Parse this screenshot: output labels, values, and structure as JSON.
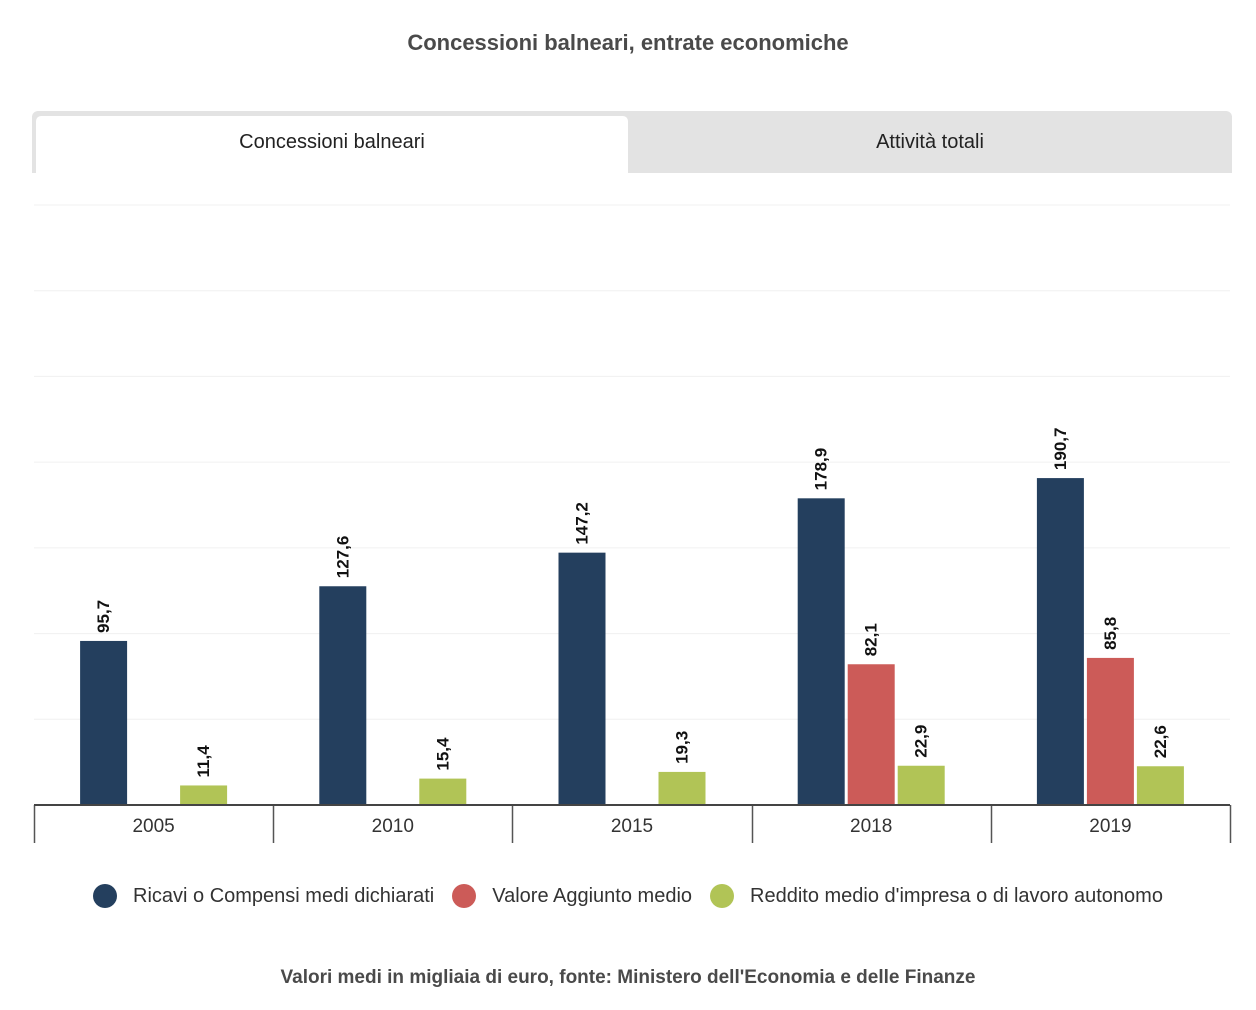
{
  "title": "Concessioni balneari, entrate economiche",
  "tabs": [
    {
      "label": "Concessioni balneari",
      "active": true
    },
    {
      "label": "Attività totali",
      "active": false
    }
  ],
  "source": "Valori medi in migliaia di euro, fonte: Ministero dell'Economia e delle Finanze",
  "chart_data": {
    "type": "bar",
    "title": "Concessioni balneari, entrate economiche",
    "categories": [
      "2005",
      "2010",
      "2015",
      "2018",
      "2019"
    ],
    "series": [
      {
        "name": "Ricavi o Compensi medi dichiarati",
        "color": "#243f5e",
        "values": [
          95.7,
          127.6,
          147.2,
          178.9,
          190.7
        ],
        "labels": [
          "95,7",
          "127,6",
          "147,2",
          "178,9",
          "190,7"
        ]
      },
      {
        "name": "Valore Aggiunto medio",
        "color": "#cc5b58",
        "values": [
          null,
          null,
          null,
          82.1,
          85.8
        ],
        "labels": [
          "",
          "",
          "",
          "82,1",
          "85,8"
        ]
      },
      {
        "name": "Reddito medio d'impresa o di lavoro autonomo",
        "color": "#b1c456",
        "values": [
          11.4,
          15.4,
          19.3,
          22.9,
          22.6
        ],
        "labels": [
          "11,4",
          "15,4",
          "19,3",
          "22,9",
          "22,6"
        ]
      }
    ],
    "ylim": [
      0,
      350
    ],
    "grid": true,
    "legend_position": "bottom"
  }
}
